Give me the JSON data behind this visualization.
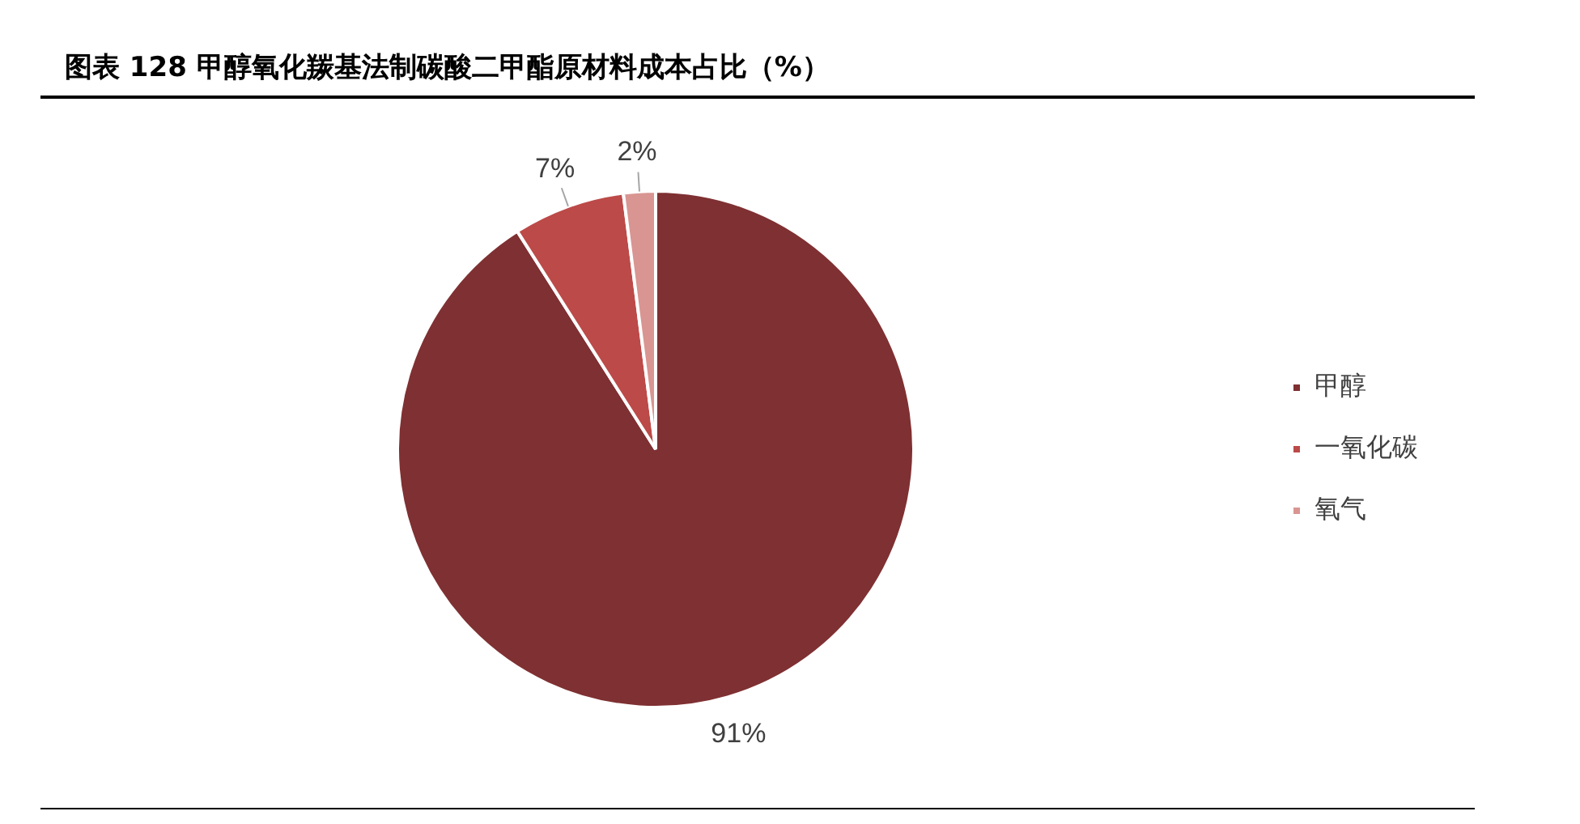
{
  "chart_data": {
    "type": "pie",
    "title": "图表 128  甲醇氧化羰基法制碳酸二甲酯原材料成本占比（%）",
    "categories": [
      "甲醇",
      "一氧化碳",
      "氧气"
    ],
    "values": [
      91,
      7,
      2
    ],
    "colors": [
      "#7f3032",
      "#bc4a48",
      "#d99592"
    ],
    "value_labels": [
      "91%",
      "7%",
      "2%"
    ],
    "legend": "right"
  }
}
